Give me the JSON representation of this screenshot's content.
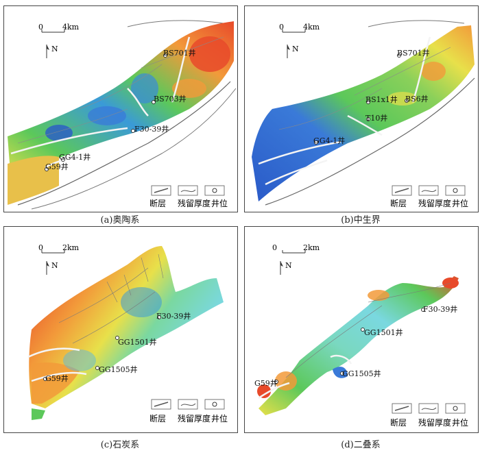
{
  "panels": [
    {
      "caption": "(a)奥陶系",
      "scale": {
        "start": "0",
        "end": "4km"
      },
      "north": "N",
      "wells": [
        "BS701井",
        "BS703井",
        "F30-39井",
        "GG4-1井",
        "G59井"
      ],
      "legend": {
        "fault": "断层",
        "thickness": "残留厚度",
        "well": "井位"
      }
    },
    {
      "caption": "(b)中生界",
      "scale": {
        "start": "0",
        "end": "4km"
      },
      "north": "N",
      "wells": [
        "BS701井",
        "BS1x1井",
        "BS6井",
        "T10井",
        "GG4-1井"
      ],
      "legend": {
        "fault": "断层",
        "thickness": "残留厚度",
        "well": "井位"
      }
    },
    {
      "caption": "(c)石炭系",
      "scale": {
        "start": "0",
        "end": "2km"
      },
      "north": "N",
      "wells": [
        "F30-39井",
        "GG1501井",
        "GG1505井",
        "G59井"
      ],
      "legend": {
        "fault": "断层",
        "thickness": "残留厚度",
        "well": "井位"
      }
    },
    {
      "caption": "(d)二叠系",
      "scale": {
        "start": "0",
        "end": "2km"
      },
      "north": "N",
      "wells": [
        "F30-39井",
        "GG1501井",
        "GG1505井",
        "G59井"
      ],
      "legend": {
        "fault": "断层",
        "thickness": "残留厚度",
        "well": "井位"
      }
    }
  ],
  "colors": {
    "red": "#e84a2a",
    "orange": "#f29a3a",
    "yellow": "#e8e04a",
    "green": "#5cc85a",
    "cyan": "#7ad8e0",
    "blue": "#3a8ad8",
    "deepblue": "#2a5ac8"
  }
}
